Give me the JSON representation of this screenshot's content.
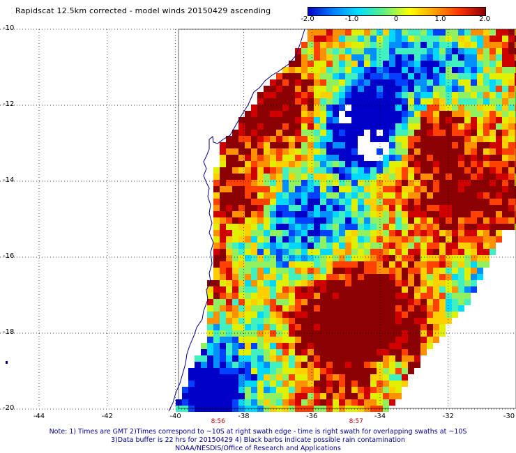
{
  "title": "Rapidscat 12.5km corrected - model winds 20150429 ascending",
  "colorbar": {
    "labels": [
      "-2.0",
      "-1.0",
      "0",
      "1.0",
      "2.0"
    ],
    "values": [
      -2.0,
      -1.0,
      0,
      1.0,
      2.0
    ],
    "range": [
      -2.0,
      2.0
    ],
    "colors": [
      "#0000c8",
      "#0080ff",
      "#00e0ff",
      "#60f080",
      "#ffff00",
      "#ffa000",
      "#ff3000",
      "#8b0000"
    ]
  },
  "axes": {
    "lon_ticks": [
      "-44",
      "-42",
      "-40",
      "-38",
      "-36",
      "-34",
      "-32",
      "-30"
    ],
    "lat_ticks": [
      "-10",
      "-12",
      "-14",
      "-16",
      "-18",
      "-20"
    ],
    "lon_range": [
      -44.5,
      -30
    ],
    "lat_range": [
      -10,
      -20
    ]
  },
  "swath_times": [
    {
      "label": "8:56",
      "lon": -38.75
    },
    {
      "label": "8:57",
      "lon": -34.7
    }
  ],
  "notes": {
    "line1": "Note: 1) Times are GMT 2)Times correspond to ~10S at right swath edge - time is right swath for overlapping swaths at ~10S",
    "line2": "3)Data buffer is 22 hrs for 20150429 4) Black barbs indicate possible rain contamination",
    "line3": "NOAA/NESDIS/Office of Research and Applications"
  },
  "colors": {
    "coastline": "#000080",
    "grid": "#000000",
    "land": "#ffffff"
  }
}
